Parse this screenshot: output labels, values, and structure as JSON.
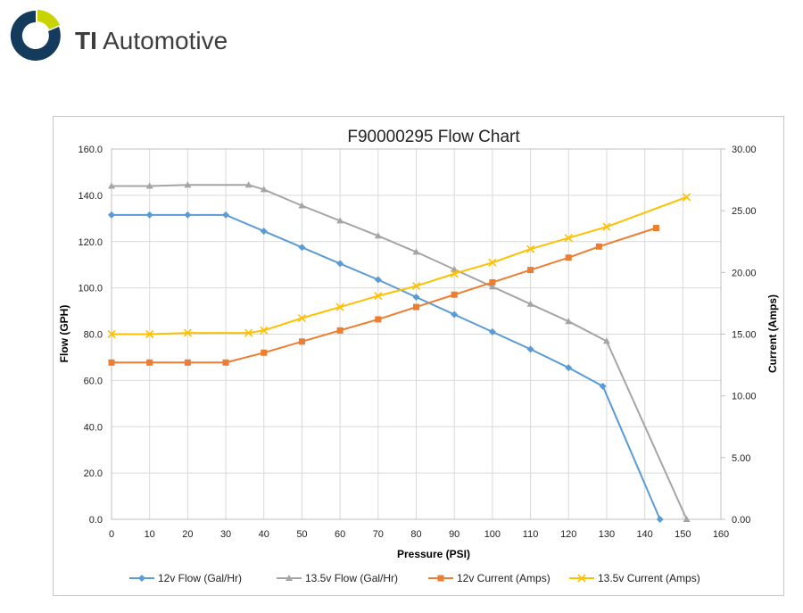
{
  "brand": {
    "name_bold": "TI",
    "name_rest": " Automotive",
    "logo_icon": "ti-automotive-ring-logo",
    "colors": {
      "dark": "#153b5c",
      "accent": "#c8d400"
    }
  },
  "chart_data": {
    "type": "line",
    "title": "F90000295  Flow Chart",
    "xlabel": "Pressure (PSI)",
    "ylabel": "Flow (GPH)",
    "y2label": "Current (Amps)",
    "xlim": [
      0,
      160
    ],
    "ylim": [
      0,
      160
    ],
    "y2lim": [
      0,
      30
    ],
    "xticks": [
      "0",
      "10",
      "20",
      "30",
      "40",
      "50",
      "60",
      "70",
      "80",
      "90",
      "100",
      "110",
      "120",
      "130",
      "140",
      "150",
      "160"
    ],
    "yticks": [
      "0.0",
      "20.0",
      "40.0",
      "60.0",
      "80.0",
      "100.0",
      "120.0",
      "140.0",
      "160.0"
    ],
    "y2ticks": [
      "0.00",
      "5.00",
      "10.00",
      "15.00",
      "20.00",
      "25.00",
      "30.00"
    ],
    "grid": true,
    "legend_position": "bottom",
    "series": [
      {
        "name": "12v Flow (Gal/Hr)",
        "axis": "left",
        "marker": "diamond",
        "color": "#5b9bd5",
        "x": [
          0,
          10,
          20,
          30,
          40,
          50,
          60,
          70,
          80,
          90,
          100,
          110,
          120,
          129,
          144
        ],
        "y": [
          131.5,
          131.5,
          131.5,
          131.5,
          124.5,
          117.5,
          110.5,
          103.5,
          96,
          88.5,
          81,
          73.5,
          65.5,
          57.5,
          0
        ]
      },
      {
        "name": "13.5v Flow (Gal/Hr)",
        "axis": "left",
        "marker": "triangle",
        "color": "#a5a5a5",
        "x": [
          0,
          10,
          20,
          36,
          40,
          50,
          60,
          70,
          80,
          90,
          100,
          110,
          120,
          130,
          151
        ],
        "y": [
          144,
          144,
          144.5,
          144.5,
          142.5,
          135.5,
          129,
          122.5,
          115.5,
          108,
          100.5,
          93,
          85.5,
          77,
          0
        ]
      },
      {
        "name": "12v Current (Amps)",
        "axis": "right",
        "marker": "square",
        "color": "#ed7d31",
        "x": [
          0,
          10,
          20,
          30,
          40,
          50,
          60,
          70,
          80,
          90,
          100,
          110,
          120,
          128,
          143
        ],
        "y": [
          12.7,
          12.7,
          12.7,
          12.7,
          13.5,
          14.4,
          15.3,
          16.2,
          17.2,
          18.2,
          19.2,
          20.2,
          21.2,
          22.1,
          23.6
        ]
      },
      {
        "name": "13.5v Current (Amps)",
        "axis": "right",
        "marker": "x",
        "color": "#ffc000",
        "x": [
          0,
          10,
          20,
          36,
          40,
          50,
          60,
          70,
          80,
          90,
          100,
          110,
          120,
          130,
          151
        ],
        "y": [
          15,
          15,
          15.1,
          15.1,
          15.3,
          16.3,
          17.2,
          18.1,
          18.9,
          19.9,
          20.8,
          21.9,
          22.8,
          23.7,
          26.1
        ]
      }
    ]
  }
}
